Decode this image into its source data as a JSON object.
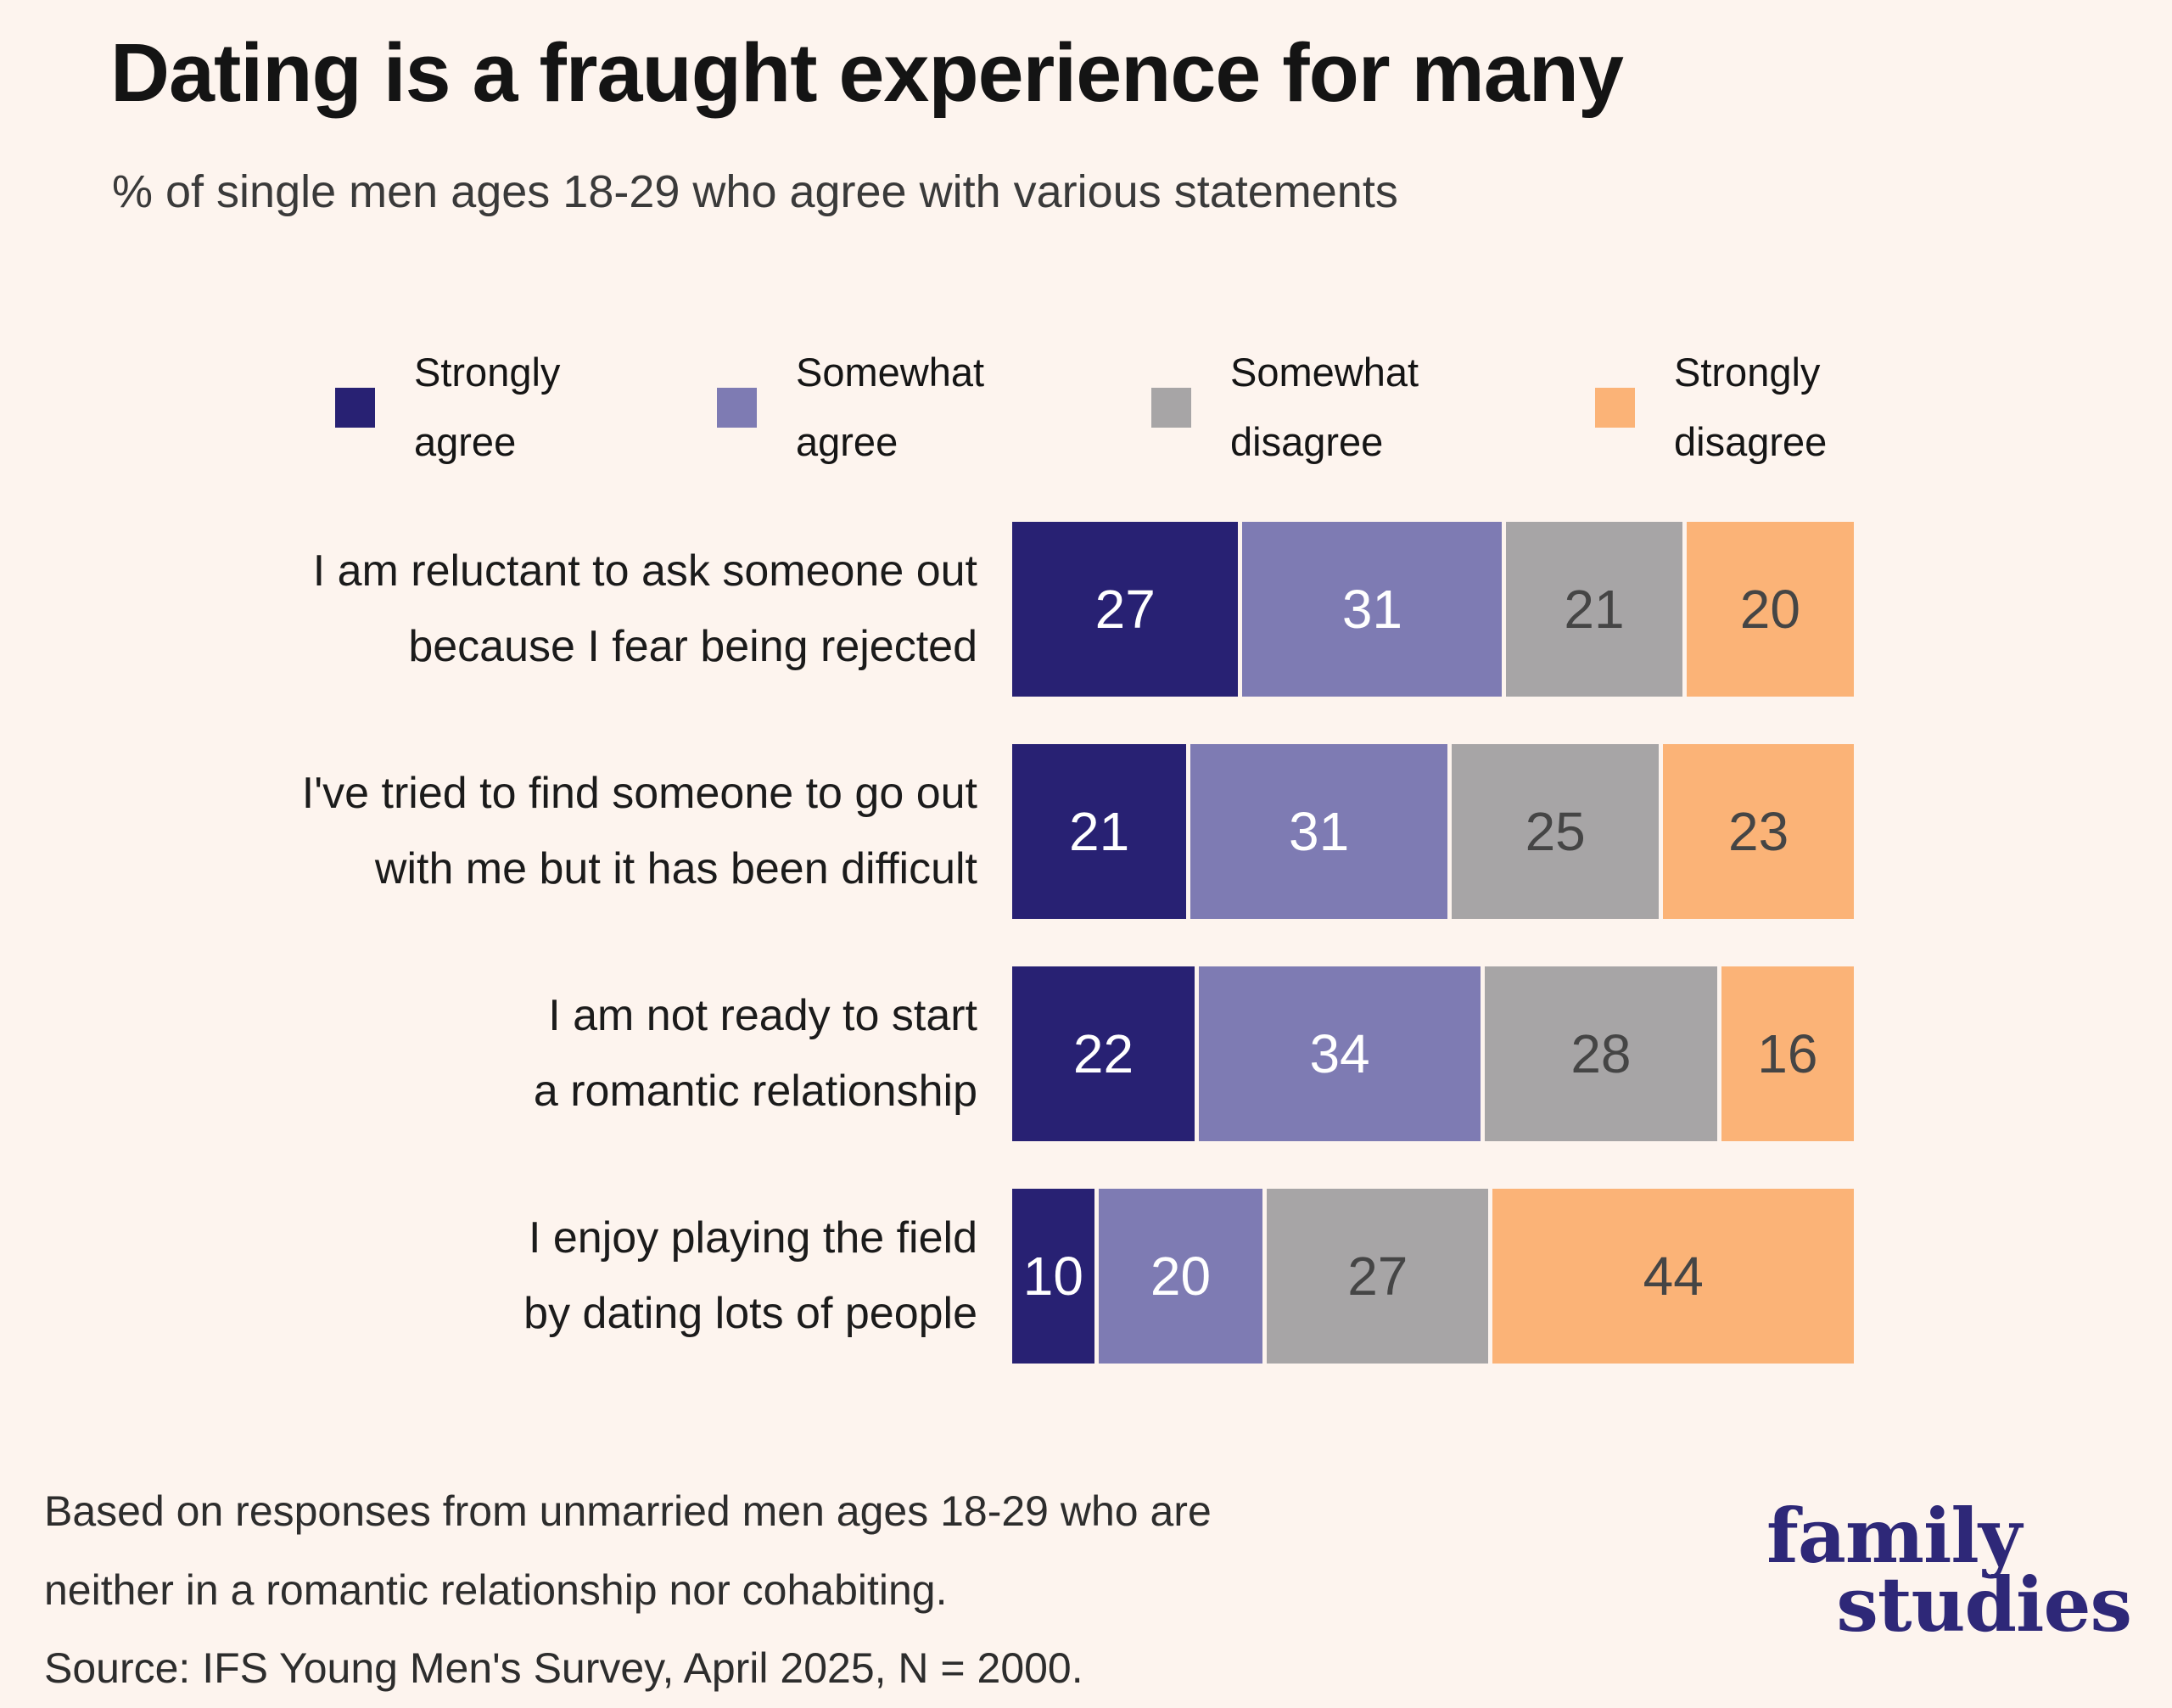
{
  "title": "Dating is a fraught experience for many",
  "subtitle": "% of single men ages 18-29 who agree with various statements",
  "colors": {
    "background": "#fdf4ee",
    "strongly_agree": "#282173",
    "somewhat_agree": "#7e7bb3",
    "somewhat_disagree": "#a7a5a6",
    "strongly_disagree": "#fbb377",
    "value_light_text": "#ffffff",
    "value_dark_text": "#454545",
    "logo": "#2e2878"
  },
  "legend": {
    "items": [
      {
        "label": "Strongly\nagree",
        "color": "#282173"
      },
      {
        "label": "Somewhat\nagree",
        "color": "#7e7bb3"
      },
      {
        "label": "Somewhat\ndisagree",
        "color": "#a7a5a6"
      },
      {
        "label": "Strongly\ndisagree",
        "color": "#fbb377"
      }
    ]
  },
  "chart_data": {
    "type": "bar",
    "stacked": true,
    "orientation": "horizontal",
    "xlim": [
      0,
      100
    ],
    "grid": false,
    "legend_position": "top",
    "title": "Dating is a fraught experience for many",
    "subtitle": "% of single men ages 18-29 who agree with various statements",
    "categories": [
      "I am reluctant to ask someone out\nbecause I fear being rejected",
      "I've tried to find someone to go out\nwith me but it has been difficult",
      "I am not ready to start\na romantic relationship",
      "I enjoy playing the field\nby dating lots of people"
    ],
    "series": [
      {
        "name": "Strongly agree",
        "color": "#282173",
        "text_color": "#ffffff",
        "values": [
          27,
          21,
          22,
          10
        ]
      },
      {
        "name": "Somewhat agree",
        "color": "#7e7bb3",
        "text_color": "#ffffff",
        "values": [
          31,
          31,
          34,
          20
        ]
      },
      {
        "name": "Somewhat disagree",
        "color": "#a7a5a6",
        "text_color": "#454545",
        "values": [
          21,
          25,
          28,
          27
        ]
      },
      {
        "name": "Strongly disagree",
        "color": "#fbb377",
        "text_color": "#454545",
        "values": [
          20,
          23,
          16,
          44
        ]
      }
    ]
  },
  "footnote": {
    "lines": [
      "Based on responses from unmarried men ages 18-29 who are",
      "neither in a romantic relationship nor cohabiting.",
      "Source: IFS Young Men's Survey, April 2025, N = 2000."
    ]
  },
  "logo": {
    "line1": "family",
    "line2": "studies"
  }
}
